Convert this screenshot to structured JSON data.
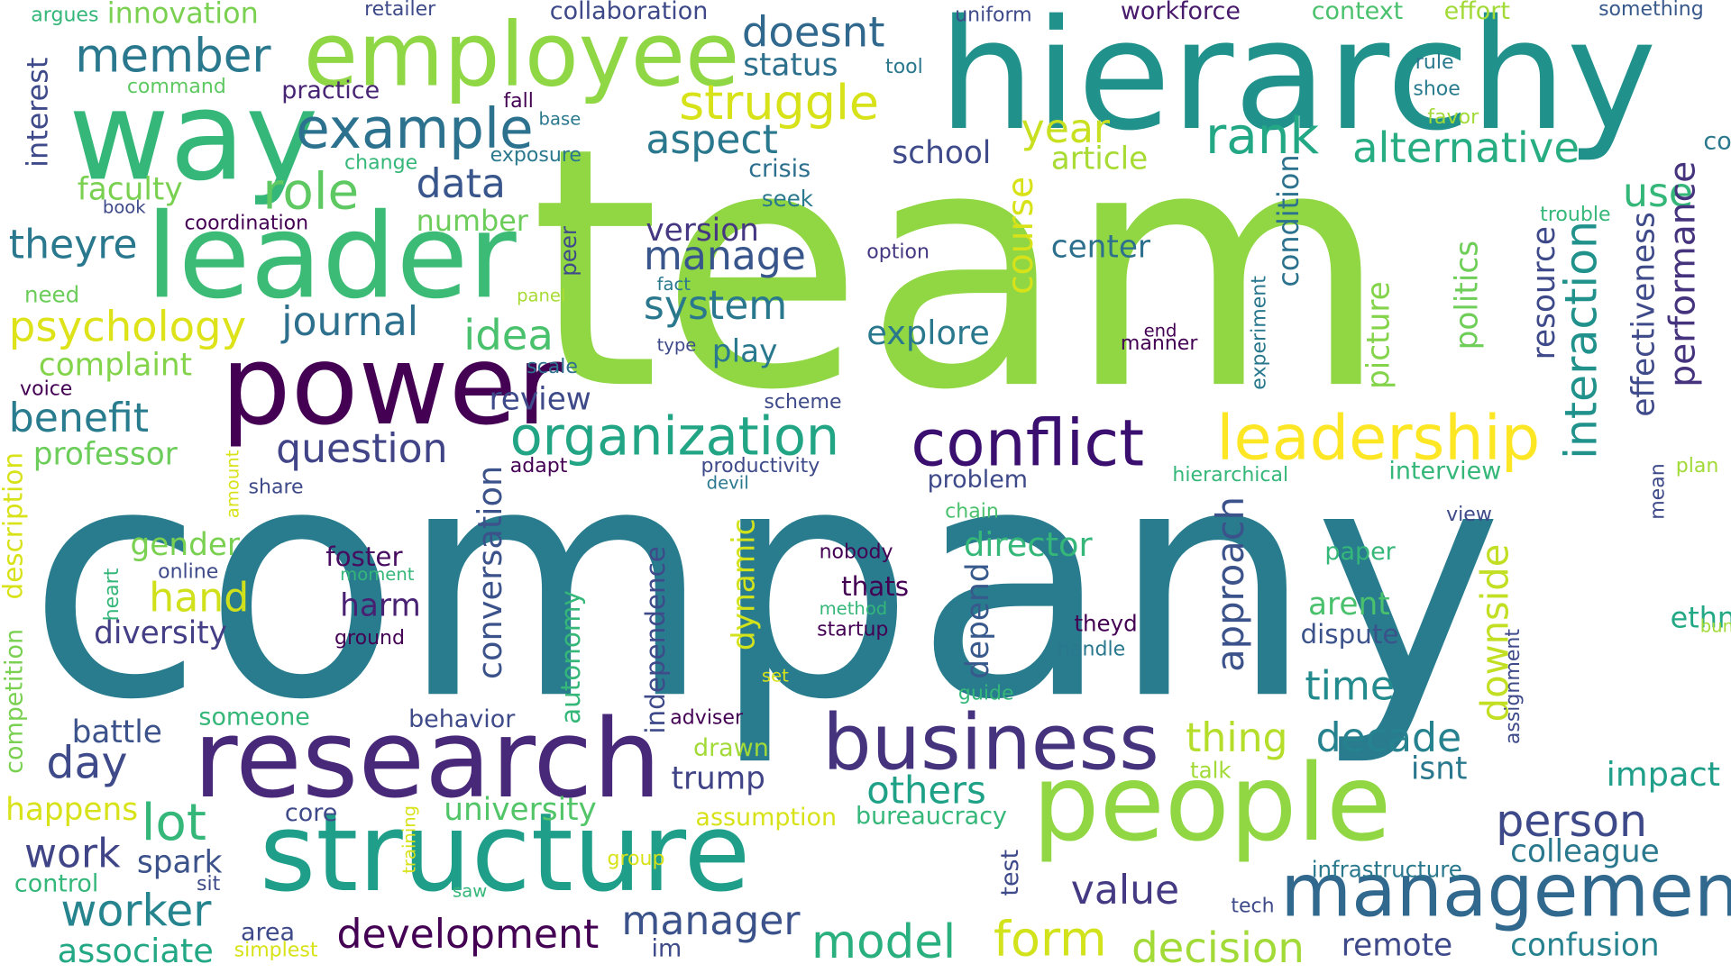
{
  "palette": {
    "purple": "#440154",
    "indigo": "#3b528b",
    "blue": "#31688e",
    "teal": "#21918c",
    "green": "#35b779",
    "lime": "#90d743",
    "yellow": "#fde725"
  },
  "words": [
    {
      "text": "team",
      "color": "#90d743"
    },
    {
      "text": "company",
      "color": "#287c8e"
    },
    {
      "text": "hierarchy",
      "color": "#21918c"
    },
    {
      "text": "employee",
      "color": "#8fd744"
    },
    {
      "text": "way",
      "color": "#35b779"
    },
    {
      "text": "leader",
      "color": "#3bbb75"
    },
    {
      "text": "power",
      "color": "#440154"
    },
    {
      "text": "research",
      "color": "#482878"
    },
    {
      "text": "structure",
      "color": "#1f9e89"
    },
    {
      "text": "people",
      "color": "#90d743"
    },
    {
      "text": "management",
      "color": "#31688e"
    },
    {
      "text": "business",
      "color": "#46337e"
    },
    {
      "text": "conflict",
      "color": "#3b0f70"
    },
    {
      "text": "leadership",
      "color": "#fde725"
    },
    {
      "text": "organization",
      "color": "#21a585"
    },
    {
      "text": "example",
      "color": "#2c728e"
    },
    {
      "text": "member",
      "color": "#2a788e"
    },
    {
      "text": "struggle",
      "color": "#d8e219"
    },
    {
      "text": "role",
      "color": "#5ec962"
    },
    {
      "text": "doesnt",
      "color": "#31688e"
    },
    {
      "text": "rank",
      "color": "#22a884"
    },
    {
      "text": "alternative",
      "color": "#27ad81"
    },
    {
      "text": "aspect",
      "color": "#2a788e"
    },
    {
      "text": "data",
      "color": "#39568c"
    },
    {
      "text": "year",
      "color": "#c8e020"
    },
    {
      "text": "theyre",
      "color": "#2a788e"
    },
    {
      "text": "psychology",
      "color": "#dde318"
    },
    {
      "text": "journal",
      "color": "#2d708e"
    },
    {
      "text": "idea",
      "color": "#4ac16d"
    },
    {
      "text": "system",
      "color": "#2a788e"
    },
    {
      "text": "manage",
      "color": "#39568c"
    },
    {
      "text": "course",
      "color": "#d8e219"
    },
    {
      "text": "explore",
      "color": "#2a788e"
    },
    {
      "text": "benefit",
      "color": "#287c8e"
    },
    {
      "text": "question",
      "color": "#414487"
    },
    {
      "text": "professor",
      "color": "#6ccd5a"
    },
    {
      "text": "complaint",
      "color": "#84d44b"
    },
    {
      "text": "review",
      "color": "#3e4a89"
    },
    {
      "text": "day",
      "color": "#3e4a89"
    },
    {
      "text": "lot",
      "color": "#35b779"
    },
    {
      "text": "hand",
      "color": "#d0e11c"
    },
    {
      "text": "diversity",
      "color": "#433e85"
    },
    {
      "text": "gender",
      "color": "#7ad151"
    },
    {
      "text": "battle",
      "color": "#3b528b"
    },
    {
      "text": "work",
      "color": "#404588"
    },
    {
      "text": "worker",
      "color": "#25848e"
    },
    {
      "text": "spark",
      "color": "#3b528b"
    },
    {
      "text": "associate",
      "color": "#22a884"
    },
    {
      "text": "development",
      "color": "#440154"
    },
    {
      "text": "manager",
      "color": "#3b528b"
    },
    {
      "text": "model",
      "color": "#2ab07f"
    },
    {
      "text": "form",
      "color": "#d2e21b"
    },
    {
      "text": "decision",
      "color": "#a2da37"
    },
    {
      "text": "value",
      "color": "#443983"
    },
    {
      "text": "university",
      "color": "#52c569"
    },
    {
      "text": "others",
      "color": "#1fa188"
    },
    {
      "text": "time",
      "color": "#238a8d"
    },
    {
      "text": "decade",
      "color": "#26828e"
    },
    {
      "text": "thing",
      "color": "#b5de2b"
    },
    {
      "text": "arent",
      "color": "#4ac16d"
    },
    {
      "text": "dispute",
      "color": "#3b528b"
    },
    {
      "text": "person",
      "color": "#3e4989"
    },
    {
      "text": "colleague",
      "color": "#2a788e"
    },
    {
      "text": "confusion",
      "color": "#26828e"
    },
    {
      "text": "remote",
      "color": "#3e4989"
    },
    {
      "text": "impact",
      "color": "#1f9e89"
    },
    {
      "text": "approach",
      "color": "#3b528b"
    },
    {
      "text": "downside",
      "color": "#c2df23"
    },
    {
      "text": "interaction",
      "color": "#21918c"
    },
    {
      "text": "performance",
      "color": "#46337e"
    },
    {
      "text": "effectiveness",
      "color": "#3e4a89"
    },
    {
      "text": "politics",
      "color": "#6ece58"
    },
    {
      "text": "resource",
      "color": "#3e4989"
    },
    {
      "text": "picture",
      "color": "#84d44b"
    },
    {
      "text": "condition",
      "color": "#2c728e"
    },
    {
      "text": "use",
      "color": "#35b779"
    },
    {
      "text": "center",
      "color": "#2d708e"
    },
    {
      "text": "school",
      "color": "#3e4a89"
    },
    {
      "text": "article",
      "color": "#a8db34"
    },
    {
      "text": "director",
      "color": "#35b779"
    },
    {
      "text": "depend",
      "color": "#38598c"
    },
    {
      "text": "dynamic",
      "color": "#d2e21b"
    },
    {
      "text": "conversation",
      "color": "#3b528b"
    },
    {
      "text": "autonomy",
      "color": "#35b779"
    },
    {
      "text": "independence",
      "color": "#3e4a89"
    },
    {
      "text": "trump",
      "color": "#414487"
    },
    {
      "text": "play",
      "color": "#2a788e"
    },
    {
      "text": "version",
      "color": "#453781"
    },
    {
      "text": "harm",
      "color": "#482173"
    },
    {
      "text": "foster",
      "color": "#470d60"
    },
    {
      "text": "ethnicity",
      "color": "#22a884"
    },
    {
      "text": "communication",
      "color": "#2a788e"
    },
    {
      "text": "innovation",
      "color": "#7ad151"
    },
    {
      "text": "collaboration",
      "color": "#3e4989"
    },
    {
      "text": "status",
      "color": "#2d708e"
    },
    {
      "text": "workforce",
      "color": "#481a6c"
    },
    {
      "text": "context",
      "color": "#4ac16d"
    },
    {
      "text": "effort",
      "color": "#a2da37"
    },
    {
      "text": "something",
      "color": "#38598c"
    },
    {
      "text": "uniform",
      "color": "#3e4a89"
    },
    {
      "text": "retailer",
      "color": "#3e4a89"
    },
    {
      "text": "argues",
      "color": "#35b779"
    },
    {
      "text": "interest",
      "color": "#3e4a89"
    },
    {
      "text": "command",
      "color": "#5ec962"
    },
    {
      "text": "practice",
      "color": "#482475"
    },
    {
      "text": "fall",
      "color": "#440154"
    },
    {
      "text": "base",
      "color": "#2a788e"
    },
    {
      "text": "exposure",
      "color": "#2a788e"
    },
    {
      "text": "change",
      "color": "#35b779"
    },
    {
      "text": "faculty",
      "color": "#7ad151"
    },
    {
      "text": "book",
      "color": "#3e4a89"
    },
    {
      "text": "coordination",
      "color": "#440154"
    },
    {
      "text": "number",
      "color": "#6ccd5a"
    },
    {
      "text": "tool",
      "color": "#2a788e"
    },
    {
      "text": "crisis",
      "color": "#2d708e"
    },
    {
      "text": "seek",
      "color": "#2a788e"
    },
    {
      "text": "rule",
      "color": "#2a788e"
    },
    {
      "text": "shoe",
      "color": "#287c8e"
    },
    {
      "text": "favor",
      "color": "#a2da37"
    },
    {
      "text": "trouble",
      "color": "#35b779"
    },
    {
      "text": "option",
      "color": "#453781"
    },
    {
      "text": "need",
      "color": "#6ccd5a"
    },
    {
      "text": "panel",
      "color": "#a8db34"
    },
    {
      "text": "fact",
      "color": "#2a788e"
    },
    {
      "text": "peer",
      "color": "#3e4a89"
    },
    {
      "text": "type",
      "color": "#3e4a89"
    },
    {
      "text": "scale",
      "color": "#2d708e"
    },
    {
      "text": "end",
      "color": "#440154"
    },
    {
      "text": "manner",
      "color": "#440154"
    },
    {
      "text": "experiment",
      "color": "#2a788e"
    },
    {
      "text": "voice",
      "color": "#440154"
    },
    {
      "text": "scheme",
      "color": "#3e4a89"
    },
    {
      "text": "productivity",
      "color": "#3e4a89"
    },
    {
      "text": "adapt",
      "color": "#440154"
    },
    {
      "text": "devil",
      "color": "#2a788e"
    },
    {
      "text": "problem",
      "color": "#3e4989"
    },
    {
      "text": "hierarchical",
      "color": "#35b779"
    },
    {
      "text": "interview",
      "color": "#35b779"
    },
    {
      "text": "plan",
      "color": "#a2da37"
    },
    {
      "text": "mean",
      "color": "#3e4a89"
    },
    {
      "text": "amount",
      "color": "#d8e219"
    },
    {
      "text": "share",
      "color": "#3e4a89"
    },
    {
      "text": "chain",
      "color": "#4ac16d"
    },
    {
      "text": "view",
      "color": "#3e4a89"
    },
    {
      "text": "paper",
      "color": "#35b779"
    },
    {
      "text": "nobody",
      "color": "#440154"
    },
    {
      "text": "thats",
      "color": "#440154"
    },
    {
      "text": "method",
      "color": "#35b779"
    },
    {
      "text": "startup",
      "color": "#440154"
    },
    {
      "text": "theyd",
      "color": "#440154"
    },
    {
      "text": "handle",
      "color": "#2a788e"
    },
    {
      "text": "description",
      "color": "#d8e219"
    },
    {
      "text": "competition",
      "color": "#7ad151"
    },
    {
      "text": "heart",
      "color": "#35b779"
    },
    {
      "text": "online",
      "color": "#3e4a89"
    },
    {
      "text": "moment",
      "color": "#35b779"
    },
    {
      "text": "ground",
      "color": "#440154"
    },
    {
      "text": "someone",
      "color": "#35b779"
    },
    {
      "text": "behavior",
      "color": "#3e4a89"
    },
    {
      "text": "adviser",
      "color": "#440154"
    },
    {
      "text": "set",
      "color": "#d8e219"
    },
    {
      "text": "guide",
      "color": "#35b779"
    },
    {
      "text": "drawn",
      "color": "#a2da37"
    },
    {
      "text": "talk",
      "color": "#a2da37"
    },
    {
      "text": "isnt",
      "color": "#2a788e"
    },
    {
      "text": "assignment",
      "color": "#3e4a89"
    },
    {
      "text": "bunch",
      "color": "#a2da37"
    },
    {
      "text": "happens",
      "color": "#d8e219"
    },
    {
      "text": "core",
      "color": "#3e4a89"
    },
    {
      "text": "assumption",
      "color": "#d8e219"
    },
    {
      "text": "bureaucracy",
      "color": "#35b779"
    },
    {
      "text": "control",
      "color": "#35b779"
    },
    {
      "text": "sit",
      "color": "#3e4a89"
    },
    {
      "text": "training",
      "color": "#d8e219"
    },
    {
      "text": "group",
      "color": "#d8e219"
    },
    {
      "text": "saw",
      "color": "#35b779"
    },
    {
      "text": "test",
      "color": "#3e4a89"
    },
    {
      "text": "infrastructure",
      "color": "#2a788e"
    },
    {
      "text": "tech",
      "color": "#3e4a89"
    },
    {
      "text": "area",
      "color": "#3e4a89"
    },
    {
      "text": "simplest",
      "color": "#d8e219"
    },
    {
      "text": "im",
      "color": "#3e4a89"
    }
  ]
}
